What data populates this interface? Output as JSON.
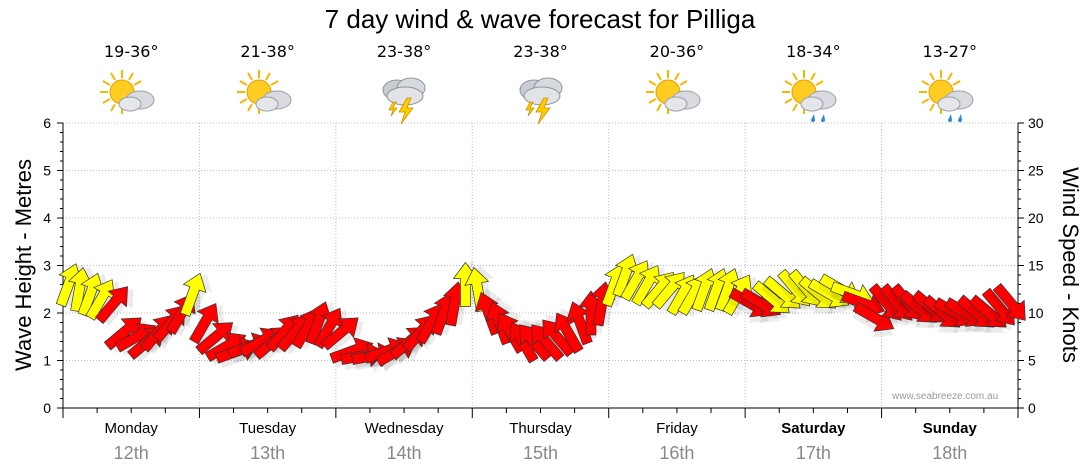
{
  "chart_data": {
    "type": "line",
    "title": "7 day wind & wave forecast for Pilliga",
    "ylabel_left": "Wave Height - Metres",
    "ylabel_right": "Wind Speed - Knots",
    "ylim_left": [
      0,
      6
    ],
    "ylim_right": [
      0,
      30
    ],
    "yticks_left": [
      "0",
      "1",
      "2",
      "3",
      "4",
      "5",
      "6"
    ],
    "yticks_right": [
      "0",
      "5",
      "10",
      "15",
      "20",
      "25",
      "30"
    ],
    "grid": true,
    "credit": "www.seabreeze.com.au",
    "days": [
      {
        "day": "Monday",
        "date": "12th",
        "temp": "19-36°",
        "icon": "sun-cloud-icon",
        "bold": false
      },
      {
        "day": "Tuesday",
        "date": "13th",
        "temp": "21-38°",
        "icon": "sun-cloud-icon",
        "bold": false
      },
      {
        "day": "Wednesday",
        "date": "14th",
        "temp": "23-38°",
        "icon": "thunderstorm-icon",
        "bold": false
      },
      {
        "day": "Thursday",
        "date": "15th",
        "temp": "23-38°",
        "icon": "thunderstorm-icon",
        "bold": false
      },
      {
        "day": "Friday",
        "date": "16th",
        "temp": "20-36°",
        "icon": "sun-cloud-icon",
        "bold": false
      },
      {
        "day": "Saturday",
        "date": "17th",
        "temp": "18-34°",
        "icon": "sun-cloud-rain-icon",
        "bold": true
      },
      {
        "day": "Sunday",
        "date": "18th",
        "temp": "13-27°",
        "icon": "sun-cloud-rain-icon",
        "bold": true
      }
    ],
    "series": [
      {
        "name": "Wind Speed",
        "x_days": [
          0.0,
          0.08,
          0.16,
          0.24,
          0.33,
          0.41,
          0.5,
          0.58,
          0.66,
          0.75,
          0.83,
          0.91,
          1.0,
          1.08,
          1.16,
          1.24,
          1.33,
          1.41,
          1.5,
          1.58,
          1.66,
          1.75,
          1.83,
          1.91,
          2.0,
          2.08,
          2.16,
          2.24,
          2.33,
          2.41,
          2.5,
          2.58,
          2.66,
          2.75,
          2.83,
          2.91,
          3.0,
          3.08,
          3.16,
          3.24,
          3.33,
          3.41,
          3.5,
          3.58,
          3.66,
          3.75,
          3.83,
          3.91,
          4.0,
          4.08,
          4.16,
          4.24,
          4.33,
          4.41,
          4.5,
          4.58,
          4.66,
          4.75,
          4.83,
          4.91,
          5.0,
          5.08,
          5.16,
          5.24,
          5.33,
          5.41,
          5.5,
          5.58,
          5.66,
          5.75,
          5.83,
          5.91,
          6.0,
          6.08,
          6.16,
          6.24,
          6.33,
          6.41,
          6.5,
          6.58,
          6.66,
          6.75,
          6.83,
          6.91
        ],
        "knots": [
          13,
          12.5,
          12,
          11.5,
          11,
          8,
          7.5,
          7,
          8,
          9,
          10,
          12,
          9,
          7.5,
          6.5,
          6,
          6.5,
          7,
          7,
          8,
          8,
          8.5,
          9,
          8.5,
          8,
          6,
          5.5,
          5.5,
          6,
          6,
          7,
          8,
          9,
          10,
          11,
          13,
          12.5,
          10,
          9,
          8,
          7,
          7,
          7,
          7.5,
          8,
          9,
          10,
          11,
          13,
          14,
          13.5,
          13,
          12.5,
          12.5,
          12,
          12,
          12.5,
          12.5,
          12.5,
          12,
          11,
          11,
          11.5,
          12,
          12.5,
          12.5,
          12,
          12,
          12.5,
          12,
          11,
          9.5,
          11,
          11,
          11,
          10.5,
          10.5,
          10,
          10,
          10,
          10,
          10,
          10.5,
          11
        ],
        "dir_deg": [
          200,
          190,
          200,
          210,
          220,
          230,
          240,
          230,
          220,
          220,
          210,
          200,
          210,
          230,
          240,
          250,
          250,
          240,
          230,
          220,
          220,
          210,
          200,
          210,
          230,
          250,
          260,
          260,
          250,
          240,
          230,
          220,
          210,
          200,
          190,
          180,
          170,
          160,
          160,
          150,
          150,
          140,
          140,
          140,
          150,
          160,
          180,
          190,
          200,
          200,
          210,
          210,
          220,
          220,
          210,
          210,
          200,
          200,
          200,
          210,
          300,
          300,
          310,
          310,
          320,
          320,
          310,
          300,
          300,
          290,
          290,
          300,
          320,
          320,
          320,
          310,
          310,
          310,
          300,
          300,
          310,
          310,
          320,
          320
        ],
        "color_threshold_knots": 11.5
      }
    ]
  }
}
